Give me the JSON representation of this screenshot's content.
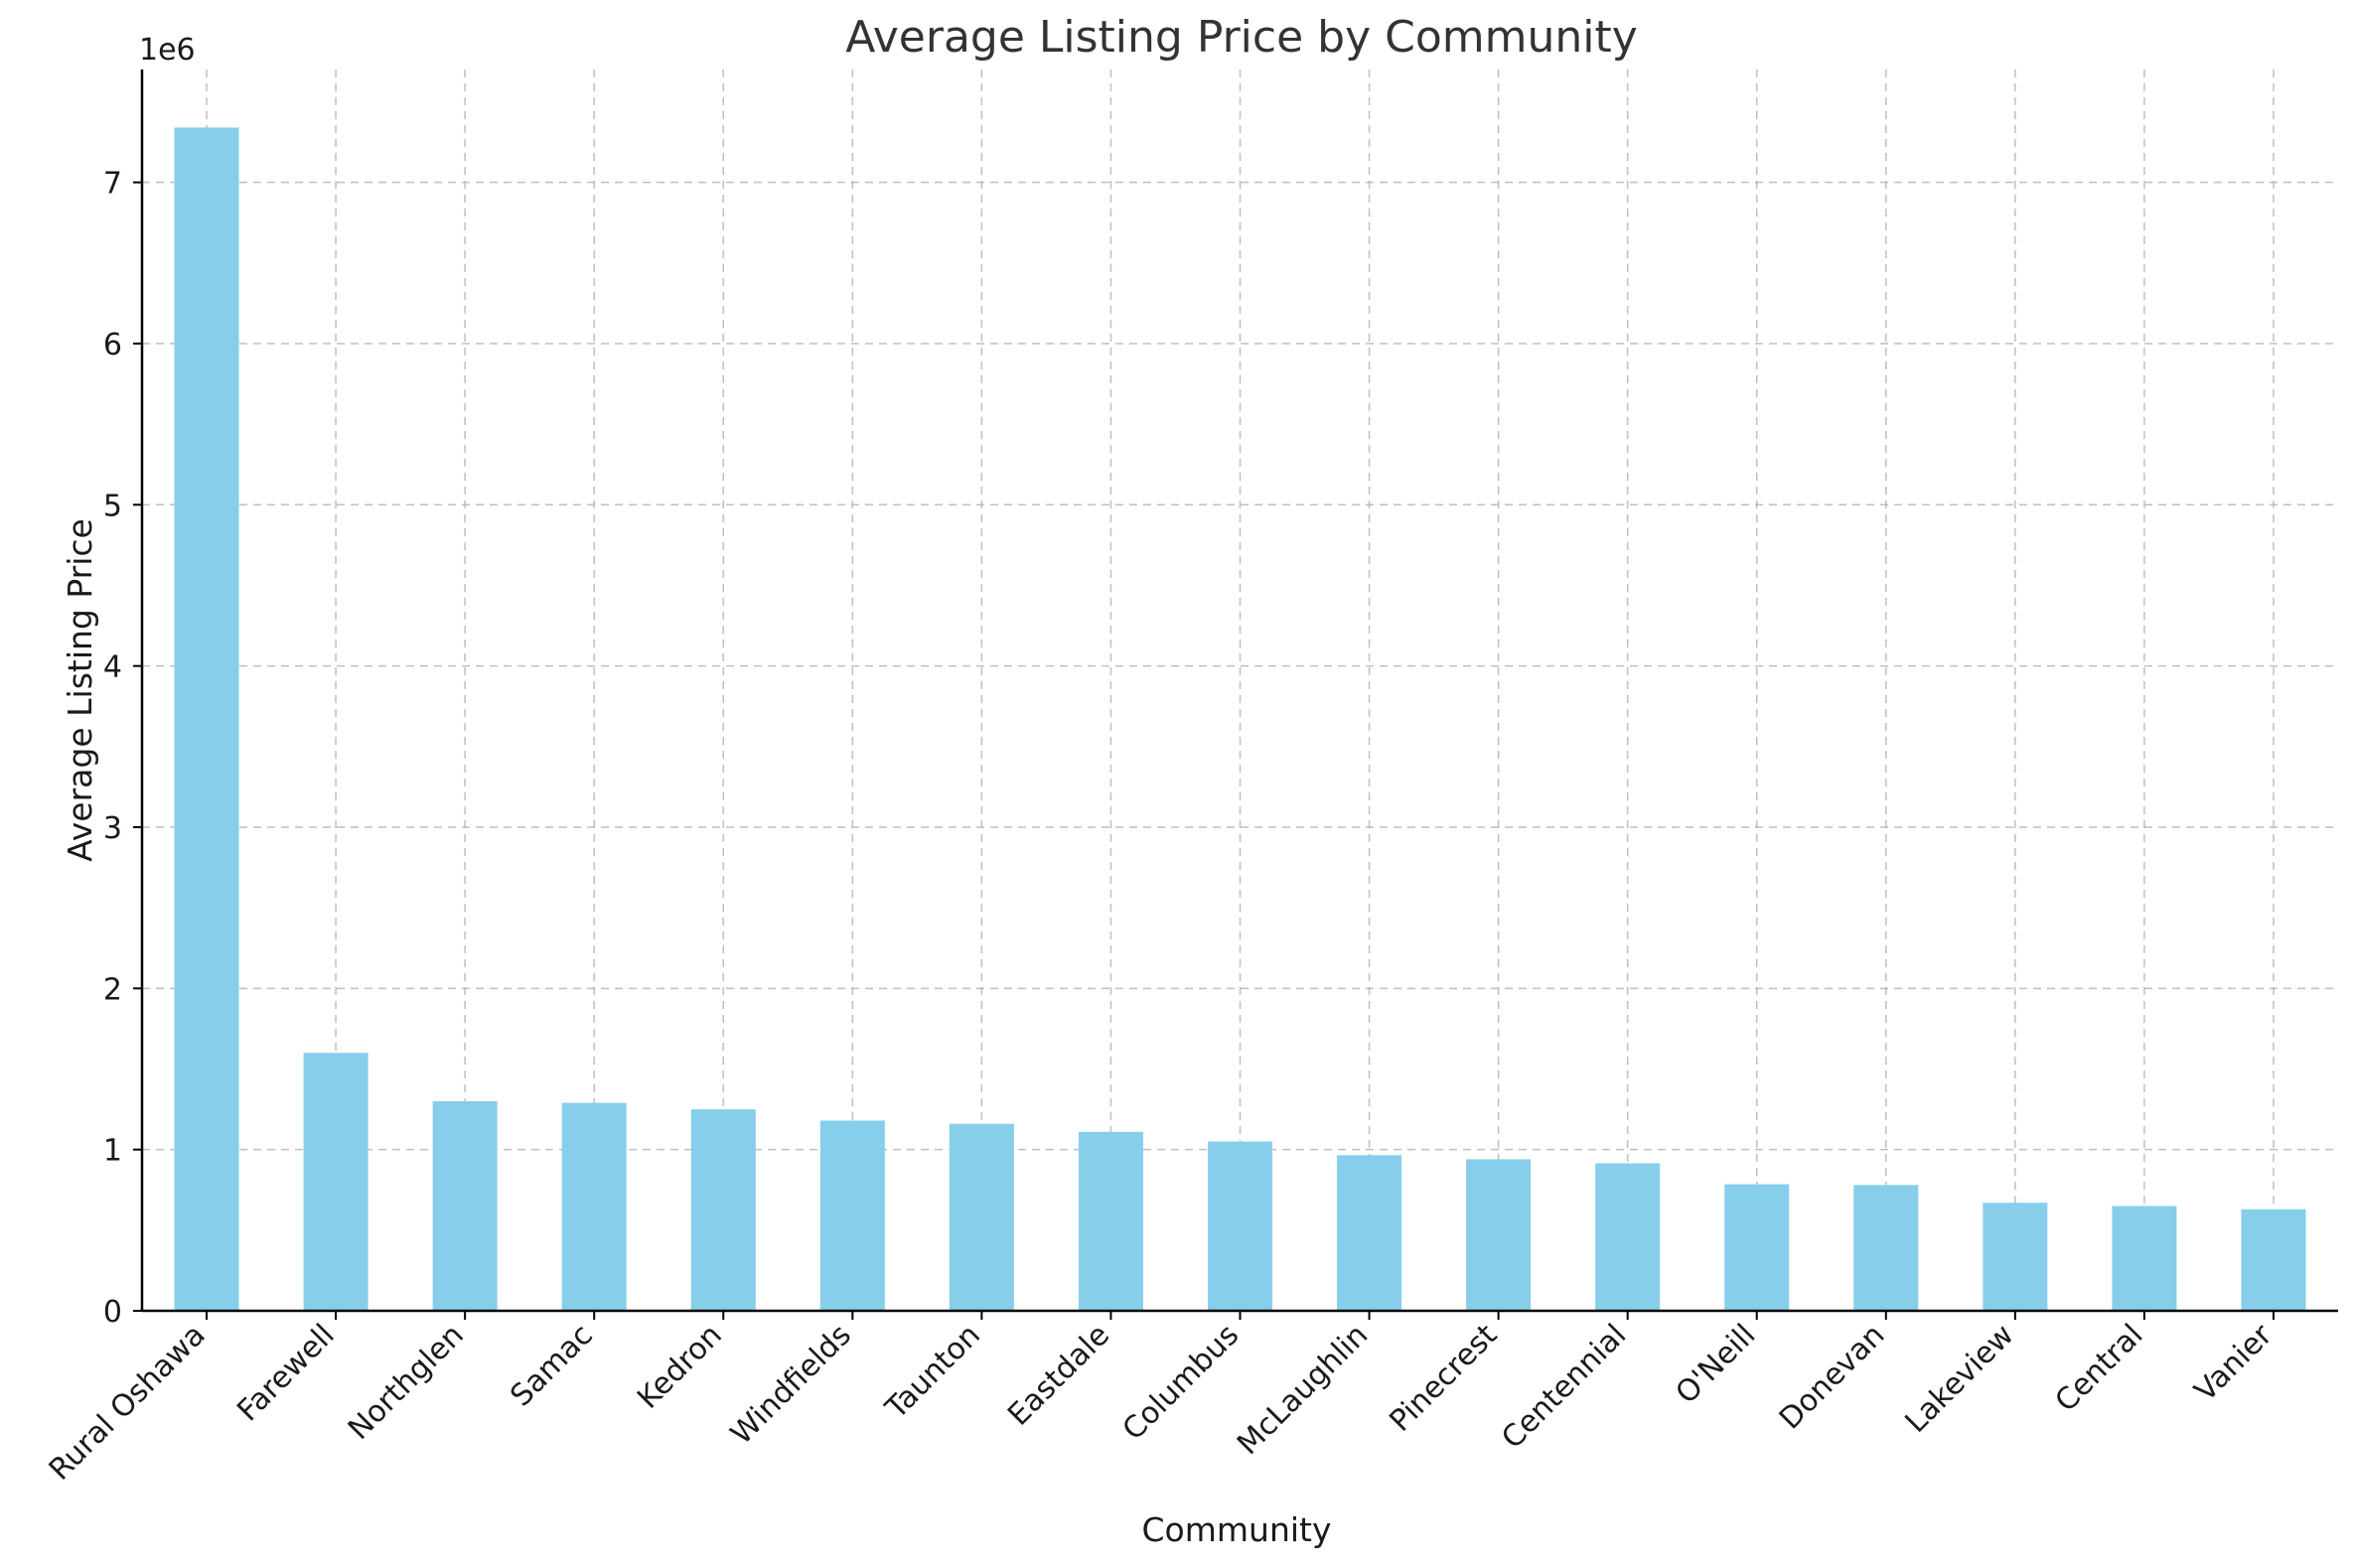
{
  "chart_data": {
    "type": "bar",
    "title": "Average Listing Price by Community",
    "xlabel": "Community",
    "ylabel": "Average Listing Price",
    "y_offset_text": "1e6",
    "y_scale": 1000000,
    "ylim": [
      0,
      7700000
    ],
    "yticks": [
      0,
      1,
      2,
      3,
      4,
      5,
      6,
      7
    ],
    "grid": true,
    "bar_color": "#87CEEB",
    "categories": [
      "Rural Oshawa",
      "Farewell",
      "Northglen",
      "Samac",
      "Kedron",
      "Windfields",
      "Taunton",
      "Eastdale",
      "Columbus",
      "McLaughlin",
      "Pinecrest",
      "Centennial",
      "O'Neill",
      "Donevan",
      "Lakeview",
      "Central",
      "Vanier"
    ],
    "values": [
      7340000,
      1600000,
      1300000,
      1290000,
      1250000,
      1180000,
      1160000,
      1110000,
      1050000,
      965000,
      940000,
      915000,
      785000,
      780000,
      670000,
      650000,
      630000
    ]
  }
}
